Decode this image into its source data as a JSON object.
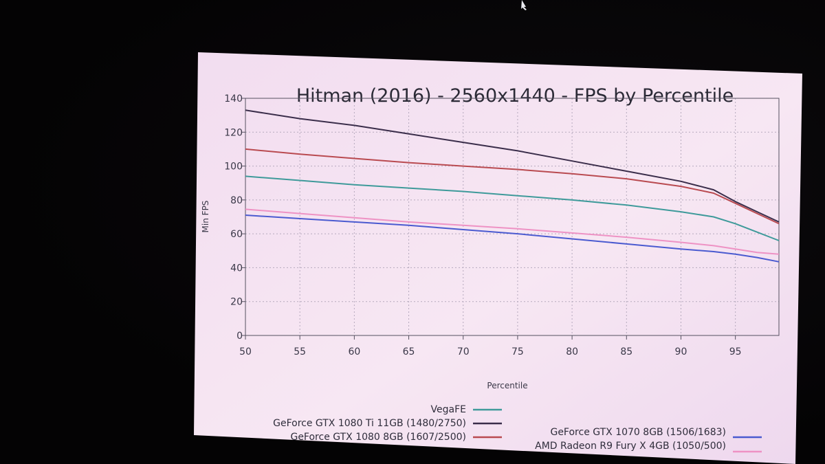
{
  "chart_data": {
    "type": "line",
    "title": "Hitman (2016) - 2560x1440 - FPS by Percentile",
    "xlabel": "Percentile",
    "ylabel": "Min FPS",
    "xlim": [
      50,
      99
    ],
    "ylim": [
      0,
      140
    ],
    "x_ticks": [
      50,
      55,
      60,
      65,
      70,
      75,
      80,
      85,
      90,
      95
    ],
    "y_ticks": [
      0,
      20,
      40,
      60,
      80,
      100,
      120,
      140
    ],
    "grid": true,
    "legend_placement": "bottom",
    "x": [
      50,
      55,
      60,
      65,
      70,
      75,
      80,
      85,
      90,
      93,
      95,
      97,
      99
    ],
    "series": [
      {
        "name": "VegaFE",
        "color": "#3e9a9a",
        "values": [
          94,
          91.5,
          89,
          87,
          85,
          82.5,
          80,
          77,
          73,
          70,
          66,
          61,
          56
        ]
      },
      {
        "name": "GeForce GTX 1080 Ti 11GB (1480/2750)",
        "color": "#3a2d4a",
        "values": [
          133,
          128,
          124,
          119,
          114,
          109,
          103,
          97,
          91,
          86,
          79,
          73,
          67
        ]
      },
      {
        "name": "GeForce GTX 1080 8GB (1607/2500)",
        "color": "#b94a50",
        "values": [
          110,
          107,
          104.5,
          102,
          100,
          98,
          95.5,
          92.5,
          88,
          84,
          78,
          72,
          66
        ]
      },
      {
        "name": "GeForce GTX 1070 8GB (1506/1683)",
        "color": "#4a5ad0",
        "values": [
          71,
          69,
          67,
          65,
          62.5,
          60,
          57,
          54,
          51,
          49.5,
          48,
          46,
          43.5
        ]
      },
      {
        "name": "AMD Radeon R9 Fury X 4GB (1050/500)",
        "color": "#ee92c4",
        "values": [
          74.5,
          72,
          69.5,
          67,
          65,
          63,
          60.5,
          58,
          55,
          53,
          51,
          49,
          48
        ]
      }
    ]
  }
}
